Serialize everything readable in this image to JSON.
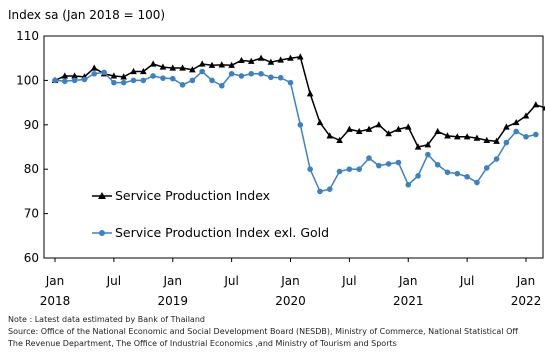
{
  "chart_data": {
    "type": "line",
    "ylabel": "Index sa (Jan 2018 = 100)",
    "ylim": [
      60,
      110
    ],
    "yticks": [
      60,
      70,
      80,
      90,
      100,
      110
    ],
    "x_start": "2018-01",
    "x_ticks": [
      {
        "index": 0,
        "month": "Jan",
        "year": "2018"
      },
      {
        "index": 6,
        "month": "Jul",
        "year": ""
      },
      {
        "index": 12,
        "month": "Jan",
        "year": "2019"
      },
      {
        "index": 18,
        "month": "Jul",
        "year": ""
      },
      {
        "index": 24,
        "month": "Jan",
        "year": "2020"
      },
      {
        "index": 30,
        "month": "Jul",
        "year": ""
      },
      {
        "index": 36,
        "month": "Jan",
        "year": "2021"
      },
      {
        "index": 42,
        "month": "Jul",
        "year": ""
      },
      {
        "index": 48,
        "month": "Jan",
        "year": "2022"
      }
    ],
    "grid": false,
    "legend_position": "bottom-left",
    "series": [
      {
        "name": "Service Production Index",
        "color": "#000000",
        "marker": "triangle",
        "values": [
          100.0,
          101.0,
          101.0,
          100.8,
          102.8,
          101.5,
          101.0,
          100.8,
          102.0,
          102.0,
          103.7,
          103.0,
          102.8,
          102.8,
          102.4,
          103.7,
          103.4,
          103.5,
          103.4,
          104.5,
          104.3,
          105.0,
          104.1,
          104.6,
          105.0,
          105.3,
          97.0,
          90.5,
          87.5,
          86.5,
          89.0,
          88.5,
          89.0,
          90.0,
          88.0,
          89.0,
          89.5,
          85.0,
          85.5,
          88.5,
          87.5,
          87.3,
          87.3,
          87.0,
          86.5,
          86.3,
          89.5,
          90.5,
          92.0,
          94.5,
          93.8,
          93.5
        ]
      },
      {
        "name": "Service Production Index exl. Gold",
        "color": "#3B82C4",
        "marker": "circle",
        "values": [
          100.0,
          99.8,
          100.0,
          100.2,
          101.5,
          101.8,
          99.5,
          99.5,
          100.0,
          100.0,
          101.0,
          100.5,
          100.4,
          99.0,
          100.0,
          102.0,
          100.0,
          98.8,
          101.5,
          101.0,
          101.5,
          101.5,
          100.7,
          100.6,
          99.5,
          90.0,
          80.0,
          75.0,
          75.5,
          79.5,
          80.0,
          80.0,
          82.5,
          80.8,
          81.2,
          81.5,
          76.5,
          78.5,
          83.3,
          81.0,
          79.3,
          79.0,
          78.3,
          77.0,
          80.3,
          82.3,
          86.0,
          88.5,
          87.3,
          87.8
        ]
      }
    ]
  },
  "notes": {
    "note": "Note : Latest data estimated by Bank of Thailand",
    "source_line1": "Source: Office of the National Economic and Social Development Board (NESDB), Ministry of Commerce, National Statistical Off",
    "source_line2": "The Revenue Department, The Office of Industrial Economics ,and Ministry of Tourism and Sports"
  }
}
